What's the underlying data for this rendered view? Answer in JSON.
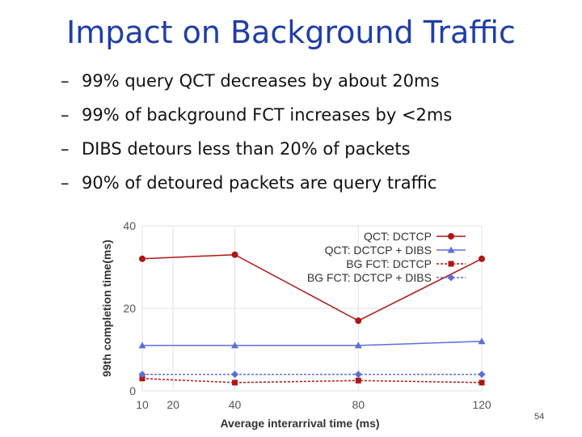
{
  "slide": {
    "title": "Impact on Background Traffic",
    "bullets": [
      "99% query QCT decreases by about 20ms",
      "99% of background FCT increases by <2ms",
      "DIBS detours less than 20% of packets",
      "90% of detoured packets are query traffic"
    ],
    "bullet_marker": "–",
    "page_number": "54"
  },
  "chart_data": {
    "type": "line",
    "xlabel": "Average interarrival time (ms)",
    "ylabel": "99th completion time(ms)",
    "xlim": [
      10,
      120
    ],
    "ylim": [
      0,
      40
    ],
    "x_ticks": [
      10,
      20,
      40,
      80,
      120
    ],
    "y_ticks": [
      0,
      20,
      40
    ],
    "grid": true,
    "legend_position": "top-right",
    "x": [
      10,
      40,
      80,
      120
    ],
    "series": [
      {
        "name": "QCT: DCTCP",
        "values": [
          32,
          33,
          17,
          32
        ],
        "color": "#b01515",
        "marker": "circle",
        "dashed": false
      },
      {
        "name": "QCT: DCTCP + DIBS",
        "values": [
          11,
          11,
          11,
          12
        ],
        "color": "#5a70d8",
        "marker": "triangle",
        "dashed": false
      },
      {
        "name": "BG FCT: DCTCP",
        "values": [
          3,
          2,
          2.5,
          2
        ],
        "color": "#b01515",
        "marker": "square",
        "dashed": true
      },
      {
        "name": "BG FCT: DCTCP + DIBS",
        "values": [
          4,
          4,
          4,
          4
        ],
        "color": "#5a70d8",
        "marker": "diamond",
        "dashed": true
      }
    ]
  }
}
